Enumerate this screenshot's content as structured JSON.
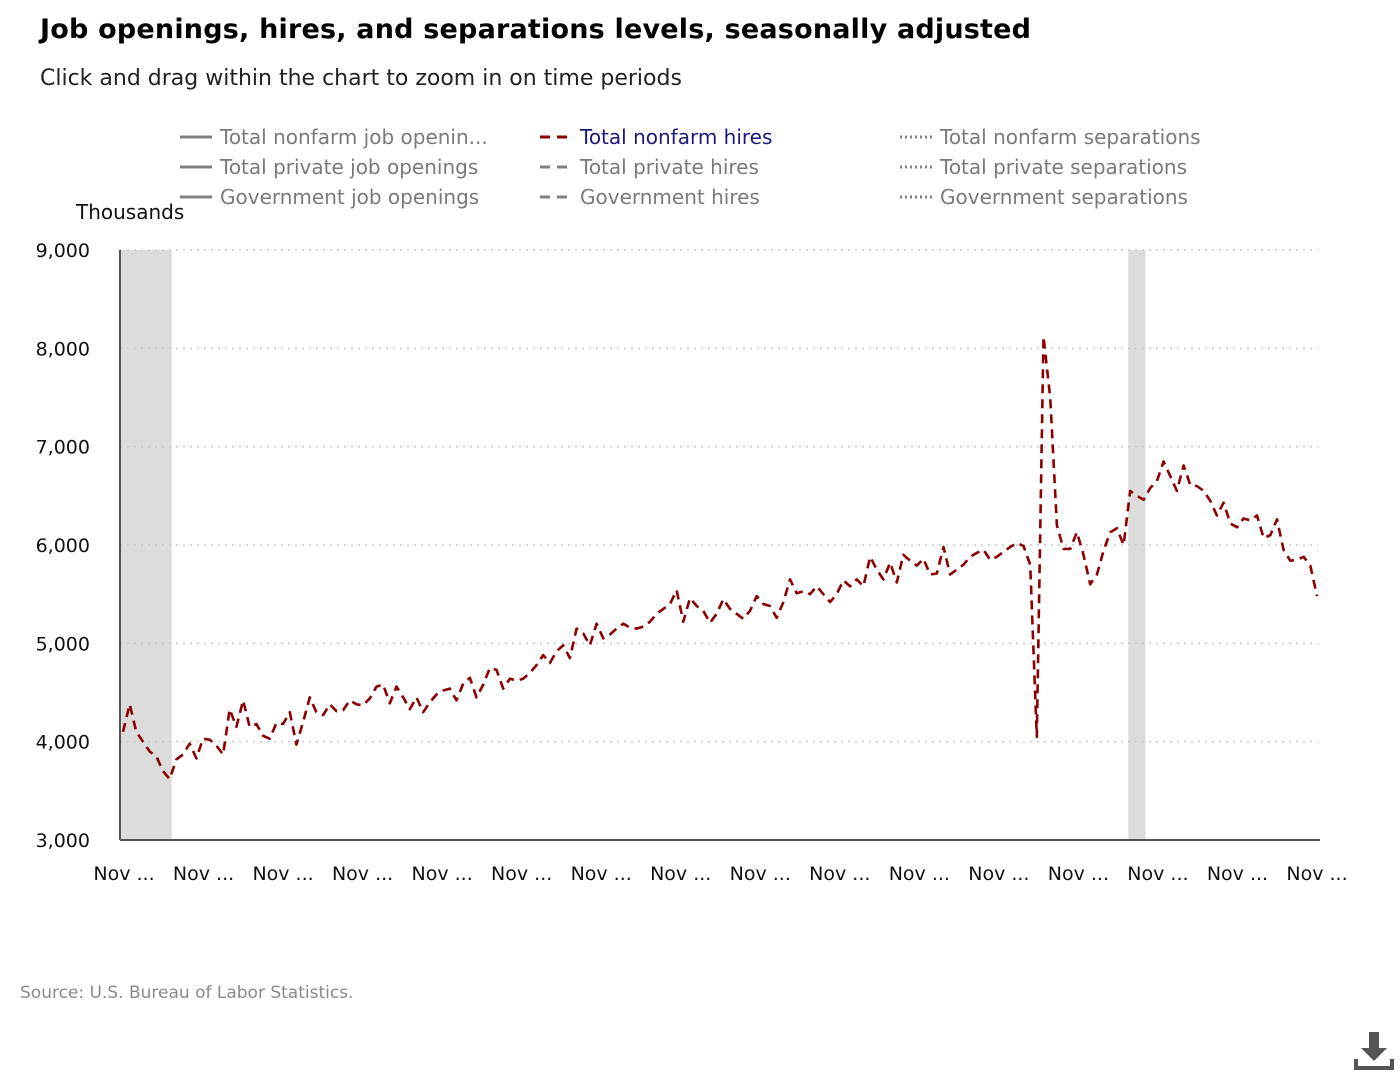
{
  "header": {
    "title": "Job openings, hires, and separations levels, seasonally adjusted",
    "subtitle": "Click and drag within the chart to zoom in on time periods"
  },
  "footer": {
    "source": "Source: U.S. Bureau of Labor Statistics.",
    "download_icon": "download-icon"
  },
  "legend": [
    {
      "label": "Total nonfarm job openin...",
      "style": "solid",
      "active": false
    },
    {
      "label": "Total private job openings",
      "style": "solid",
      "active": false
    },
    {
      "label": "Government job openings",
      "style": "solid",
      "active": false
    },
    {
      "label": "Total nonfarm hires",
      "style": "dashed",
      "active": true
    },
    {
      "label": "Total private hires",
      "style": "dashed",
      "active": false
    },
    {
      "label": "Government hires",
      "style": "dashed",
      "active": false
    },
    {
      "label": "Total nonfarm separations",
      "style": "dotted",
      "active": false
    },
    {
      "label": "Total private separations",
      "style": "dotted",
      "active": false
    },
    {
      "label": "Government separations",
      "style": "dotted",
      "active": false
    }
  ],
  "colors": {
    "active_series": "#8b0000",
    "inactive_legend": "#808080",
    "recession_band": "#dcdcdc",
    "grid": "#c8c8c8",
    "axis": "#555555"
  },
  "chart_data": {
    "type": "line",
    "ylabel": "Thousands",
    "ylim": [
      3000,
      9000
    ],
    "yticks": [
      "9,000",
      "8,000",
      "7,000",
      "6,000",
      "5,000",
      "4,000",
      "3,000"
    ],
    "ytick_values": [
      9000,
      8000,
      7000,
      6000,
      5000,
      4000,
      3000
    ],
    "xticks": [
      "Nov ...",
      "Nov ...",
      "Nov ...",
      "Nov ...",
      "Nov ...",
      "Nov ...",
      "Nov ...",
      "Nov ...",
      "Nov ...",
      "Nov ...",
      "Nov ...",
      "Nov ...",
      "Nov ...",
      "Nov ...",
      "Nov ...",
      "Nov ..."
    ],
    "grid": "horizontal dotted",
    "recession_periods_in_months": [
      [
        0,
        7
      ],
      [
        151,
        153
      ]
    ],
    "series": [
      {
        "name": "Total nonfarm hires",
        "visible": true,
        "values": [
          4100,
          4380,
          4100,
          4000,
          3900,
          3850,
          3700,
          3620,
          3820,
          3870,
          3980,
          3830,
          4030,
          4020,
          3960,
          3870,
          4330,
          4150,
          4420,
          4150,
          4180,
          4060,
          4030,
          4190,
          4180,
          4300,
          3970,
          4200,
          4450,
          4300,
          4270,
          4380,
          4310,
          4320,
          4420,
          4380,
          4370,
          4440,
          4560,
          4580,
          4390,
          4560,
          4450,
          4330,
          4450,
          4300,
          4400,
          4480,
          4520,
          4540,
          4420,
          4590,
          4650,
          4450,
          4580,
          4750,
          4730,
          4540,
          4640,
          4620,
          4640,
          4700,
          4780,
          4880,
          4800,
          4920,
          4980,
          4850,
          5150,
          5100,
          4980,
          5200,
          5050,
          5090,
          5150,
          5200,
          5160,
          5150,
          5170,
          5220,
          5300,
          5350,
          5400,
          5540,
          5220,
          5460,
          5380,
          5330,
          5210,
          5300,
          5450,
          5350,
          5300,
          5250,
          5330,
          5480,
          5400,
          5380,
          5260,
          5420,
          5650,
          5510,
          5530,
          5500,
          5580,
          5500,
          5420,
          5500,
          5640,
          5580,
          5650,
          5580,
          5880,
          5750,
          5650,
          5820,
          5620,
          5900,
          5840,
          5790,
          5860,
          5700,
          5710,
          5980,
          5700,
          5750,
          5800,
          5880,
          5920,
          5950,
          5850,
          5880,
          5930,
          5980,
          6020,
          5990,
          5800,
          4050,
          8120,
          7500,
          6200,
          5960,
          5960,
          6130,
          5900,
          5600,
          5700,
          5940,
          6130,
          6170,
          6000,
          6550,
          6500,
          6460,
          6580,
          6650,
          6850,
          6700,
          6550,
          6810,
          6610,
          6600,
          6550,
          6450,
          6300,
          6430,
          6220,
          6180,
          6270,
          6250,
          6300,
          6070,
          6100,
          6260,
          5950,
          5840,
          5850,
          5880,
          5790,
          5480
        ]
      }
    ]
  }
}
